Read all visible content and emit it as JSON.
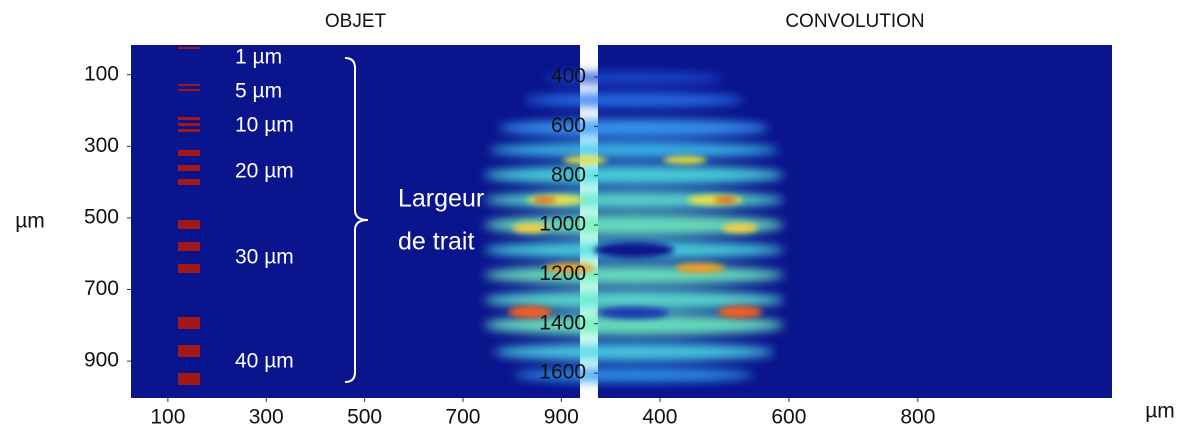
{
  "chart_data": [
    {
      "type": "image",
      "title": "OBJET",
      "y_label": "µm",
      "xlim": [
        25,
        938
      ],
      "xticks": [
        100,
        300,
        500,
        700,
        900
      ],
      "ylim": [
        17,
        1003
      ],
      "yticks": [
        100,
        300,
        500,
        700,
        900
      ],
      "y_inverted": true,
      "annotations": [
        "1 µm",
        "5 µm",
        "10 µm",
        "20 µm",
        "30 µm",
        "40 µm",
        "Largeur",
        "de trait"
      ]
    },
    {
      "type": "image",
      "title": "CONVOLUTION",
      "x_label": "µm",
      "xlim": [
        304,
        1101
      ],
      "xticks": [
        400,
        600,
        800
      ],
      "ylim": [
        270,
        1701
      ],
      "yticks": [
        400,
        600,
        800,
        1000,
        1200,
        1400,
        1600
      ],
      "y_inverted": true
    }
  ]
}
